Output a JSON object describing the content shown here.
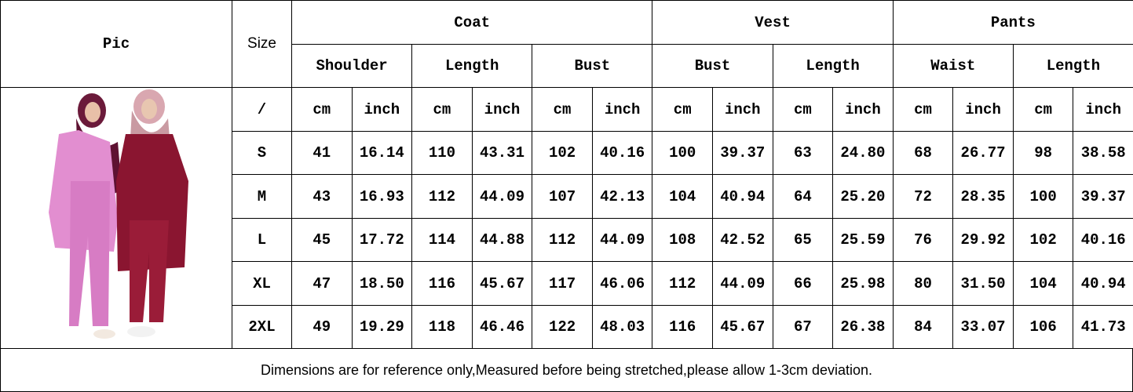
{
  "header": {
    "pic": "Pic",
    "size": "Size",
    "groups": [
      {
        "name": "Coat",
        "columns": [
          "Shoulder",
          "Length",
          "Bust"
        ]
      },
      {
        "name": "Vest",
        "columns": [
          "Bust",
          "Length"
        ]
      },
      {
        "name": "Pants",
        "columns": [
          "Waist",
          "Length"
        ]
      }
    ]
  },
  "table": {
    "rows": [
      [
        "/",
        "cm",
        "inch",
        "cm",
        "inch",
        "cm",
        "inch",
        "cm",
        "inch",
        "cm",
        "inch",
        "cm",
        "inch",
        "cm",
        "inch"
      ],
      [
        "S",
        "41",
        "16.14",
        "110",
        "43.31",
        "102",
        "40.16",
        "100",
        "39.37",
        "63",
        "24.80",
        "68",
        "26.77",
        "98",
        "38.58"
      ],
      [
        "M",
        "43",
        "16.93",
        "112",
        "44.09",
        "107",
        "42.13",
        "104",
        "40.94",
        "64",
        "25.20",
        "72",
        "28.35",
        "100",
        "39.37"
      ],
      [
        "L",
        "45",
        "17.72",
        "114",
        "44.88",
        "112",
        "44.09",
        "108",
        "42.52",
        "65",
        "25.59",
        "76",
        "29.92",
        "102",
        "40.16"
      ],
      [
        "XL",
        "47",
        "18.50",
        "116",
        "45.67",
        "117",
        "46.06",
        "112",
        "44.09",
        "66",
        "25.98",
        "80",
        "31.50",
        "104",
        "40.94"
      ],
      [
        "2XL",
        "49",
        "19.29",
        "118",
        "46.46",
        "122",
        "48.03",
        "116",
        "45.67",
        "67",
        "26.38",
        "84",
        "33.07",
        "106",
        "41.73"
      ]
    ]
  },
  "footer": "Dimensions are for reference only,Measured before being stretched,please allow 1-3cm deviation."
}
